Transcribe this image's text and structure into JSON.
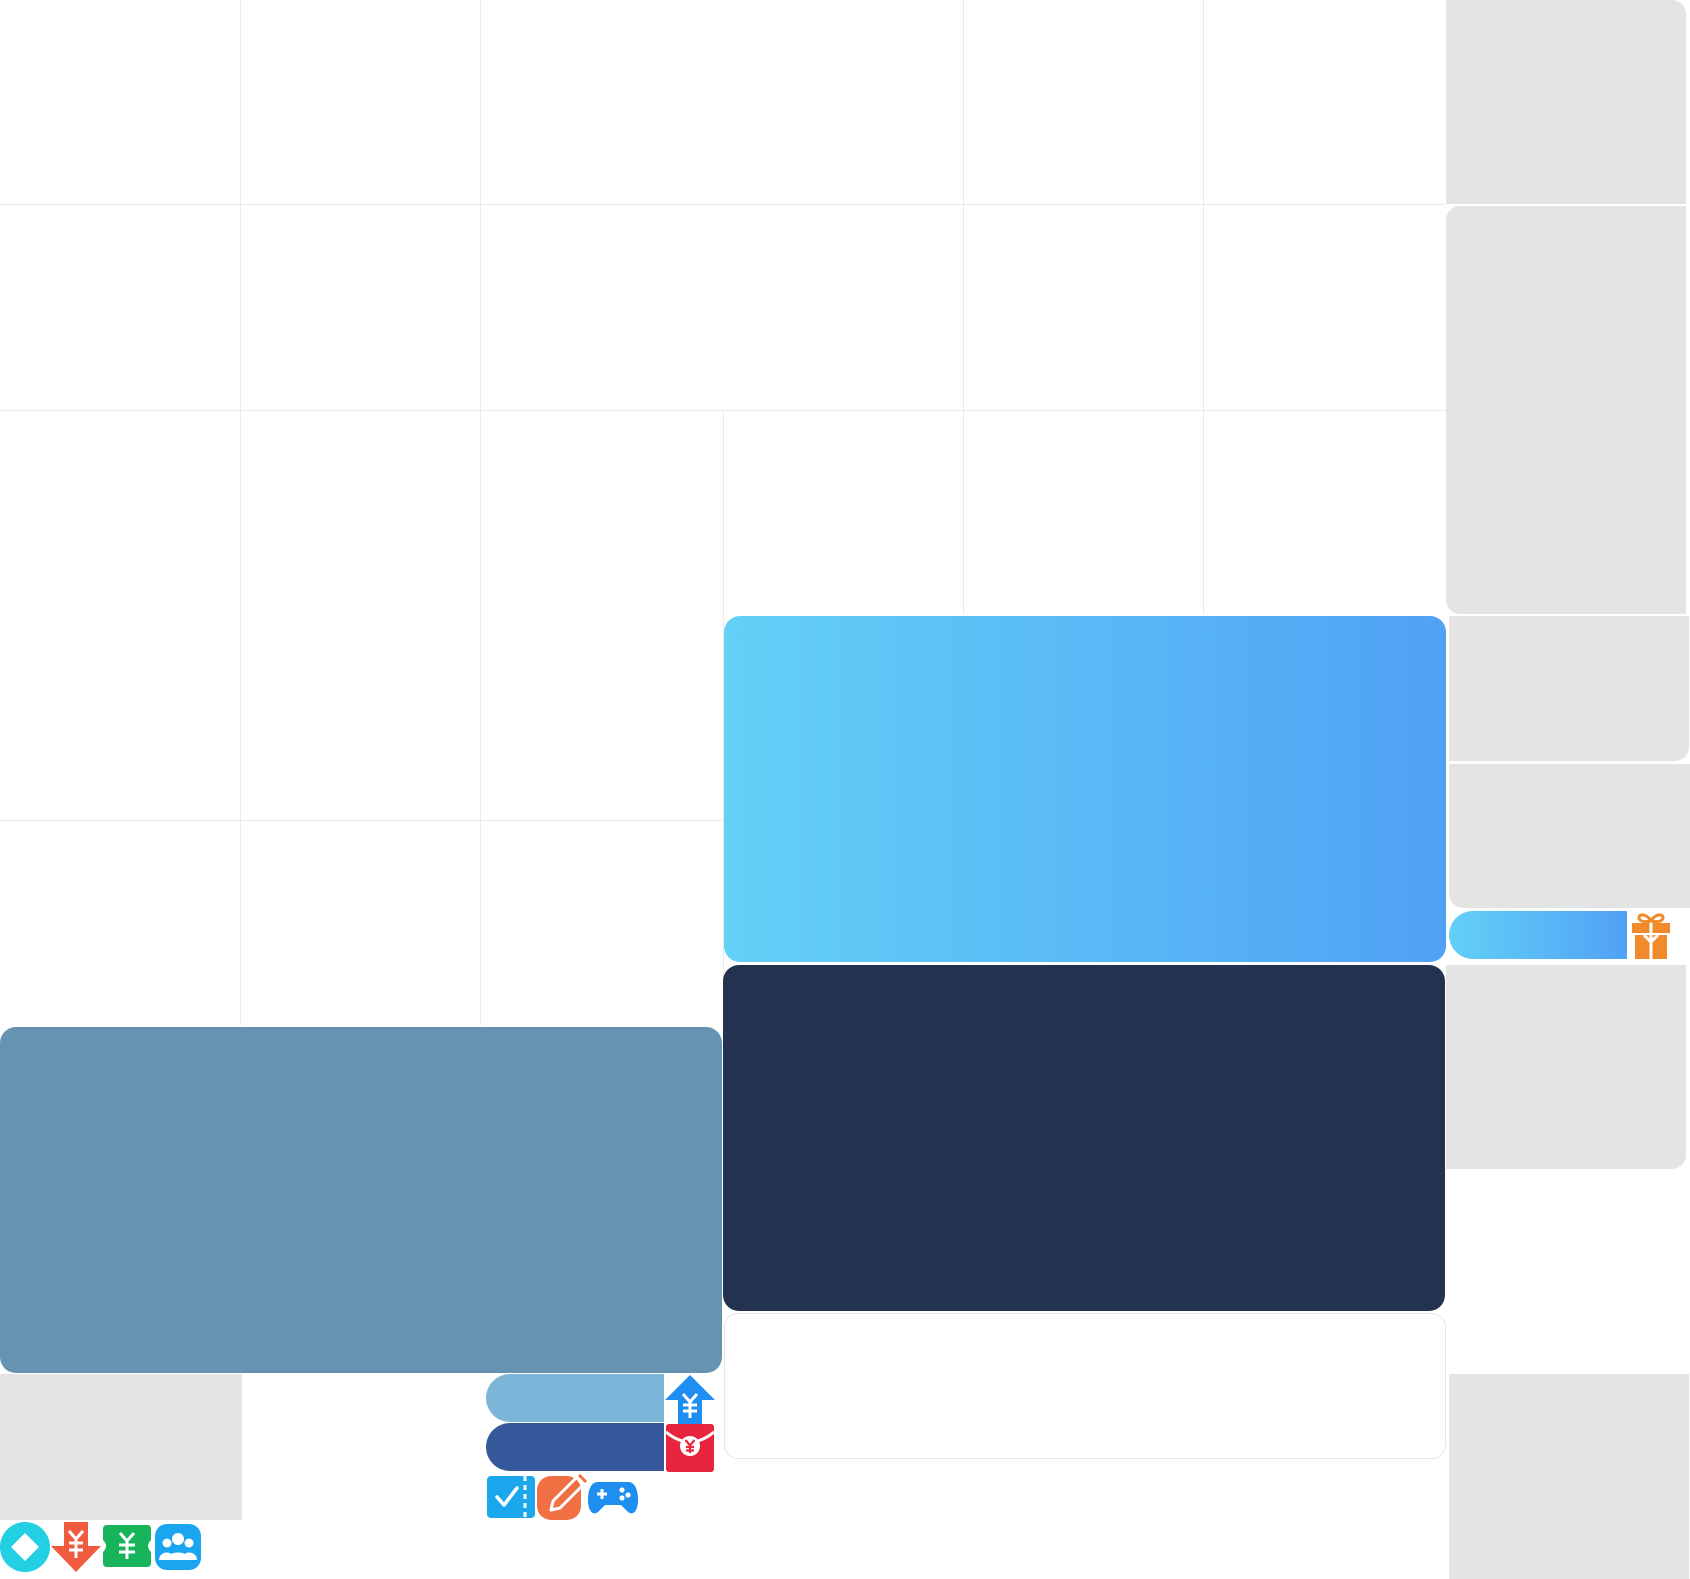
{
  "theme": {
    "grid_line": "#e9eaec",
    "placeholder_gray": "#e4e4e4",
    "gradient_start": "#63d0f6",
    "gradient_end": "#50a2f5",
    "navy": "#23324f",
    "steel": "#6593b0",
    "pill_light": "#7bb6d9",
    "pill_dark": "#35599a"
  },
  "icons": {
    "gift": "gift-icon",
    "yuan_up": "yuan-upload-icon",
    "red_envelope": "red-envelope-icon",
    "ticket_check": "ticket-check-icon",
    "pencil": "pencil-edit-icon",
    "gamepad": "gamepad-icon",
    "diamond": "diamond-icon",
    "yuan_down": "yuan-download-icon",
    "yuan_ticket": "yuan-ticket-icon",
    "group": "group-users-icon"
  }
}
